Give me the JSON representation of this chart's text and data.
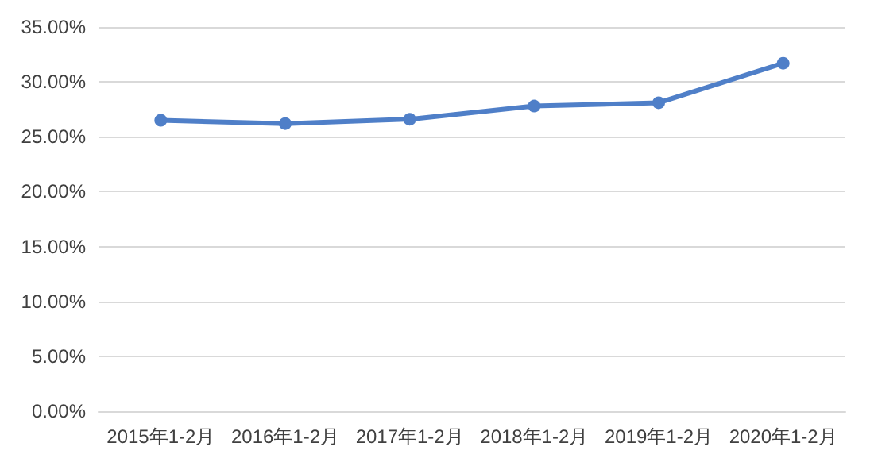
{
  "chart_data": {
    "type": "line",
    "categories": [
      "2015年1-2月",
      "2016年1-2月",
      "2017年1-2月",
      "2018年1-2月",
      "2019年1-2月",
      "2020年1-2月"
    ],
    "series": [
      {
        "color": "#4f7fc8",
        "values": [
          26.5,
          26.2,
          26.6,
          27.8,
          28.1,
          31.7
        ]
      }
    ],
    "ylim": [
      0,
      35
    ],
    "yticks": [
      {
        "value": 0,
        "label": "0.00%"
      },
      {
        "value": 5,
        "label": "5.00%"
      },
      {
        "value": 10,
        "label": "10.00%"
      },
      {
        "value": 15,
        "label": "15.00%"
      },
      {
        "value": 20,
        "label": "20.00%"
      },
      {
        "value": 25,
        "label": "25.00%"
      },
      {
        "value": 30,
        "label": "30.00%"
      },
      {
        "value": 35,
        "label": "35.00%"
      }
    ],
    "grid": "y",
    "marker": "circle",
    "line_style": "solid"
  }
}
